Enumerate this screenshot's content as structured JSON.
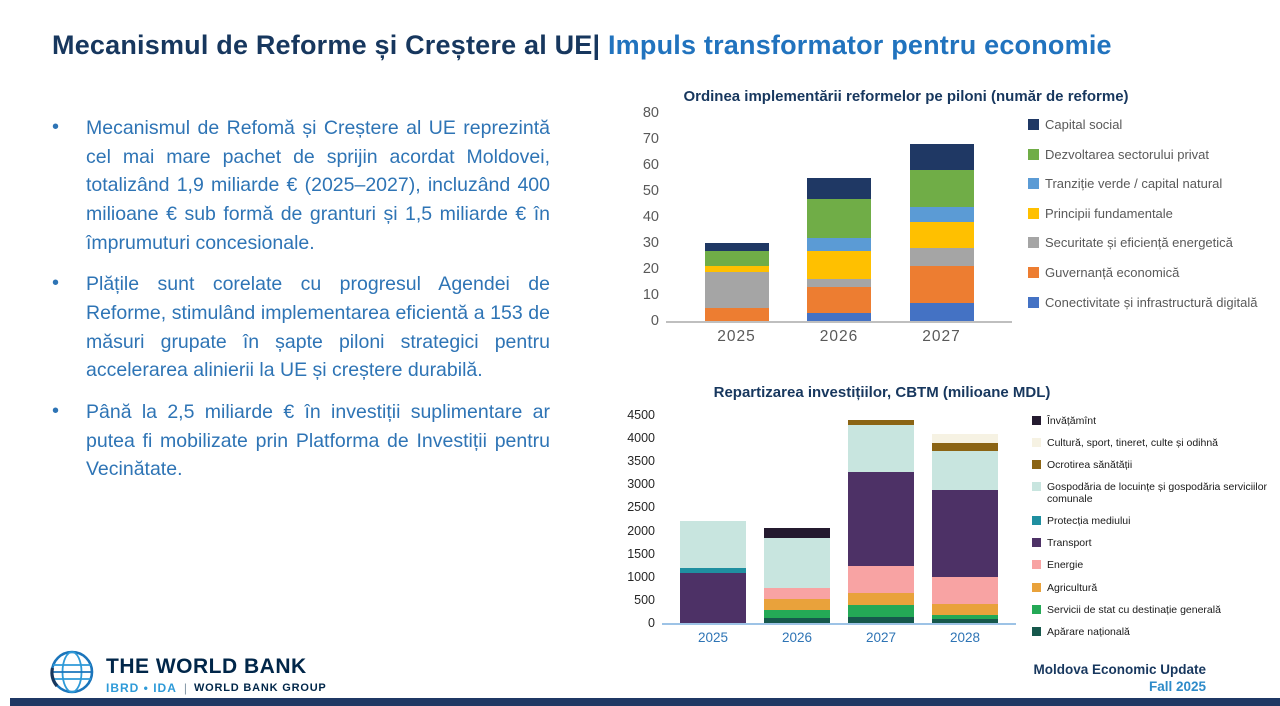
{
  "slide": {
    "title_primary": "Mecanismul de Reforme și Creștere al UE|",
    "title_secondary": " Impuls transformator pentru economie",
    "bullet_char": "•",
    "bullets": [
      "Mecanismul de Refomă și Creștere al UE reprezintă cel mai mare pachet de sprijin acordat Moldovei, totalizând 1,9 miliarde € (2025–2027), incluzând 400 milioane € sub formă de granturi și 1,5 miliarde € în împrumuturi concesionale.",
      "Plățile sunt corelate cu progresul Agendei de Reforme, stimulând implementarea eficientă a 153 de măsuri grupate în șapte piloni strategici pentru accelerarea alinierii la UE și creștere durabilă.",
      "Până la 2,5 miliarde € în investiții suplimentare ar putea fi mobilizate prin Platforma de Investiții pentru Vecinătate."
    ],
    "logo": {
      "name": "THE WORLD BANK",
      "sub_left": "IBRD • IDA",
      "divider": "|",
      "sub_right": "WORLD BANK GROUP"
    },
    "footer": {
      "report": "Moldova Economic Update",
      "edition": "Fall 2025"
    },
    "colors": {
      "title_navy": "#17375E",
      "title_blue": "#2173BE",
      "body_blue": "#2E74B5",
      "accent_bar_navy": "#1F3864"
    }
  },
  "chart_data": [
    {
      "type": "bar",
      "stacked": true,
      "title": "Ordinea implementării reformelor pe piloni (număr de reforme)",
      "categories": [
        "2025",
        "2026",
        "2027"
      ],
      "ylim": [
        0,
        80
      ],
      "ytick_step": 10,
      "grid": false,
      "legend_position": "right",
      "series": [
        {
          "name": "Conectivitate și infrastructură digitală",
          "color": "#4472C4",
          "values": [
            0,
            3,
            7
          ]
        },
        {
          "name": "Guvernanță economică",
          "color": "#ED7D31",
          "values": [
            5,
            10,
            14
          ]
        },
        {
          "name": "Securitate și eficiență energetică",
          "color": "#A5A5A5",
          "values": [
            14,
            3,
            7
          ]
        },
        {
          "name": "Principii fundamentale",
          "color": "#FFC000",
          "values": [
            2,
            11,
            10
          ]
        },
        {
          "name": "Tranziție verde / capital natural",
          "color": "#5B9BD5",
          "values": [
            0,
            5,
            6
          ]
        },
        {
          "name": "Dezvoltarea sectorului privat",
          "color": "#70AD47",
          "values": [
            6,
            15,
            14
          ]
        },
        {
          "name": "Capital social",
          "color": "#1F3864",
          "values": [
            3,
            8,
            10
          ]
        }
      ]
    },
    {
      "type": "bar",
      "stacked": true,
      "title": "Repartizarea investițiilor, CBTM (milioane MDL)",
      "categories": [
        "2025",
        "2026",
        "2027",
        "2028"
      ],
      "ylim": [
        0,
        4500
      ],
      "ytick_step": 500,
      "grid": false,
      "legend_position": "right",
      "series": [
        {
          "name": "Apărare națională",
          "color": "#16584C",
          "values": [
            0,
            110,
            130,
            80
          ]
        },
        {
          "name": "Servicii de stat cu destinație generală",
          "color": "#24A956",
          "values": [
            0,
            170,
            260,
            100
          ]
        },
        {
          "name": "Agricultură",
          "color": "#E9A23B",
          "values": [
            0,
            240,
            260,
            240
          ]
        },
        {
          "name": "Energie",
          "color": "#F8A3A3",
          "values": [
            0,
            240,
            580,
            570
          ]
        },
        {
          "name": "Transport",
          "color": "#4D3166",
          "values": [
            1080,
            0,
            2030,
            1880
          ]
        },
        {
          "name": "Protecția mediului",
          "color": "#1F8FA0",
          "values": [
            110,
            0,
            0,
            0
          ]
        },
        {
          "name": "Gospodăria de locuințe și gospodăria serviciilor comunale",
          "color": "#C8E5DF",
          "values": [
            1010,
            1070,
            1020,
            860
          ]
        },
        {
          "name": "Ocrotirea sănătății",
          "color": "#8B6414",
          "values": [
            0,
            0,
            120,
            170
          ]
        },
        {
          "name": "Cultură, sport, tineret, culte și odihnă",
          "color": "#F6F2E3",
          "values": [
            0,
            0,
            0,
            200
          ]
        },
        {
          "name": "Învățămînt",
          "color": "#241A2F",
          "values": [
            0,
            230,
            0,
            0
          ]
        }
      ]
    }
  ]
}
